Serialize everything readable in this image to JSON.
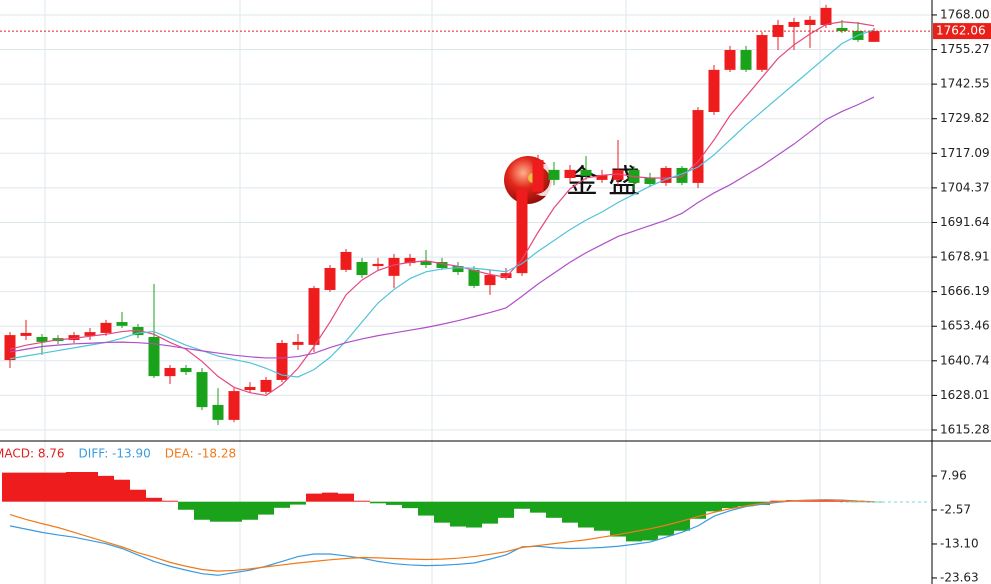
{
  "chart_data": [
    {
      "type": "candlestick",
      "watermark": "金 盛",
      "up_color": "#ee1c1c",
      "down_color": "#1ba21b",
      "open": [
        1641.0,
        1649.9,
        1649.5,
        1649.1,
        1648.4,
        1649.9,
        1651.0,
        1655.0,
        1653.2,
        1649.5,
        1635.1,
        1638.1,
        1636.6,
        1624.5,
        1619.0,
        1630.0,
        1629.3,
        1633.7,
        1646.6,
        1646.6,
        1666.8,
        1674.2,
        1677.1,
        1675.6,
        1672.0,
        1676.7,
        1677.5,
        1677.1,
        1675.6,
        1674.2,
        1668.6,
        1671.2,
        1673.0,
        1702.9,
        1711.0,
        1708.0,
        1711.0,
        1707.3,
        1707.3,
        1711.0,
        1708.0,
        1706.2,
        1711.7,
        1706.2,
        1732.3,
        1747.8,
        1755.1,
        1747.8,
        1759.9,
        1763.6,
        1764.3,
        1764.3,
        1763.2,
        1762.1,
        1758.1
      ],
      "high": [
        1651.3,
        1655.8,
        1650.6,
        1650.2,
        1651.3,
        1652.8,
        1655.8,
        1658.7,
        1654.3,
        1669.0,
        1639.2,
        1639.2,
        1638.1,
        1630.7,
        1630.7,
        1632.9,
        1634.8,
        1648.4,
        1650.6,
        1668.3,
        1676.0,
        1681.9,
        1678.6,
        1678.6,
        1680.1,
        1680.1,
        1681.5,
        1678.6,
        1677.1,
        1675.6,
        1674.2,
        1674.9,
        1705.1,
        1716.5,
        1713.9,
        1712.8,
        1716.1,
        1711.0,
        1722.0,
        1712.4,
        1709.9,
        1712.4,
        1712.4,
        1734.1,
        1749.6,
        1756.6,
        1756.6,
        1761.7,
        1766.2,
        1766.9,
        1767.6,
        1771.7,
        1766.2,
        1765.4,
        1763.2
      ],
      "low": [
        1638.1,
        1648.4,
        1642.9,
        1646.9,
        1647.3,
        1648.4,
        1649.9,
        1652.8,
        1649.1,
        1634.4,
        1632.2,
        1635.5,
        1622.6,
        1617.1,
        1618.2,
        1628.9,
        1628.5,
        1632.9,
        1644.7,
        1644.0,
        1666.1,
        1673.4,
        1671.2,
        1674.2,
        1667.5,
        1675.6,
        1674.9,
        1674.2,
        1672.3,
        1667.5,
        1665.0,
        1670.5,
        1672.0,
        1701.8,
        1705.4,
        1706.5,
        1707.3,
        1706.2,
        1705.4,
        1703.6,
        1704.7,
        1705.1,
        1705.4,
        1704.3,
        1731.2,
        1747.0,
        1747.0,
        1747.0,
        1755.1,
        1755.1,
        1755.9,
        1763.2,
        1761.4,
        1758.1,
        1758.1
      ],
      "close": [
        1650.2,
        1651.0,
        1647.7,
        1648.0,
        1650.2,
        1651.3,
        1654.7,
        1653.6,
        1650.2,
        1635.1,
        1638.1,
        1636.6,
        1623.7,
        1619.0,
        1629.6,
        1631.1,
        1633.7,
        1647.3,
        1647.7,
        1667.5,
        1674.9,
        1680.8,
        1672.3,
        1676.4,
        1678.6,
        1678.6,
        1676.0,
        1674.9,
        1673.4,
        1668.3,
        1672.3,
        1673.0,
        1703.6,
        1714.6,
        1707.3,
        1711.0,
        1708.8,
        1709.1,
        1711.0,
        1706.2,
        1705.8,
        1711.7,
        1706.2,
        1733.0,
        1747.8,
        1755.1,
        1747.8,
        1760.6,
        1764.3,
        1765.4,
        1766.2,
        1770.6,
        1762.1,
        1758.8,
        1762.06
      ],
      "lines": [
        {
          "color": "#e8467c",
          "values": [
            1645.0,
            1646.5,
            1647.5,
            1648.5,
            1649.0,
            1649.8,
            1650.5,
            1651.5,
            1652.0,
            1650.5,
            1647.5,
            1645.0,
            1640.5,
            1635.0,
            1631.0,
            1629.0,
            1628.0,
            1632.0,
            1638.0,
            1646.0,
            1655.0,
            1665.0,
            1670.5,
            1674.0,
            1676.0,
            1677.0,
            1677.5,
            1676.5,
            1675.5,
            1674.0,
            1672.5,
            1671.5,
            1678.0,
            1688.0,
            1697.0,
            1704.0,
            1708.0,
            1709.0,
            1709.5,
            1708.5,
            1708.0,
            1708.0,
            1708.5,
            1714.0,
            1722.0,
            1731.0,
            1738.0,
            1745.0,
            1752.0,
            1757.0,
            1761.0,
            1764.5,
            1765.5,
            1765.0,
            1764.0
          ]
        },
        {
          "color": "#4fc3d9",
          "values": [
            1641.5,
            1642.5,
            1643.5,
            1644.5,
            1645.5,
            1646.5,
            1647.5,
            1649.0,
            1651.0,
            1651.5,
            1649.0,
            1646.5,
            1644.5,
            1642.5,
            1641.2,
            1640.0,
            1638.0,
            1635.5,
            1634.8,
            1637.5,
            1642.0,
            1648.0,
            1655.0,
            1662.0,
            1667.0,
            1671.0,
            1673.5,
            1674.5,
            1675.0,
            1674.8,
            1674.2,
            1673.5,
            1676.5,
            1681.0,
            1685.0,
            1689.0,
            1692.5,
            1695.5,
            1699.0,
            1702.0,
            1705.0,
            1707.5,
            1709.5,
            1712.0,
            1716.5,
            1722.0,
            1727.5,
            1732.5,
            1737.5,
            1742.5,
            1747.5,
            1752.5,
            1757.5,
            1760.5,
            1762.5
          ]
        },
        {
          "color": "#b04fc9",
          "values": [
            1644.0,
            1645.0,
            1646.0,
            1646.5,
            1647.0,
            1647.2,
            1647.5,
            1647.6,
            1647.4,
            1647.0,
            1646.2,
            1645.3,
            1644.4,
            1643.6,
            1642.8,
            1642.2,
            1641.8,
            1641.8,
            1642.3,
            1643.5,
            1645.6,
            1647.4,
            1648.8,
            1650.0,
            1651.0,
            1652.0,
            1653.0,
            1654.2,
            1655.5,
            1657.0,
            1658.5,
            1660.2,
            1664.5,
            1669.0,
            1673.0,
            1677.0,
            1680.5,
            1683.5,
            1686.5,
            1688.5,
            1690.5,
            1692.5,
            1695.0,
            1699.0,
            1702.5,
            1705.5,
            1709.0,
            1712.5,
            1716.5,
            1720.5,
            1725.0,
            1729.5,
            1732.5,
            1735.0,
            1737.8
          ]
        }
      ],
      "current_price": 1762.06,
      "ylim": [
        1611.6,
        1773.5
      ],
      "yticks": [
        {
          "value": 1768,
          "label": "1768.00"
        },
        1755.27,
        1742.55,
        1729.82,
        1717.09,
        1704.37,
        1691.64,
        1678.91,
        1666.19,
        1653.46,
        1640.74,
        1628.01,
        1615.28
      ],
      "grid": true
    },
    {
      "type": "macd",
      "legend": [
        {
          "text": "MACD: 8.76",
          "color": "#e02020"
        },
        {
          "text": "DIFF: -13.90",
          "color": "#3a9be0"
        },
        {
          "text": "DEA: -18.28",
          "color": "#f07a1a"
        }
      ],
      "up_color": "#ee1c1c",
      "down_color": "#1ba21b",
      "histogram": [
        9.0,
        9.0,
        9.0,
        9.0,
        9.2,
        9.2,
        8.0,
        6.8,
        3.7,
        1.2,
        0.3,
        -2.5,
        -5.6,
        -6.2,
        -6.2,
        -5.6,
        -4.0,
        -1.9,
        -0.9,
        2.5,
        2.8,
        2.5,
        0.3,
        -0.5,
        -1.0,
        -2.0,
        -4.3,
        -6.5,
        -7.7,
        -8.0,
        -6.8,
        -5.0,
        -2.2,
        -3.4,
        -5.0,
        -6.5,
        -8.0,
        -9.0,
        -10.8,
        -12.3,
        -12.0,
        -10.5,
        -9.0,
        -5.3,
        -3.0,
        -2.0,
        -1.4,
        -1.0,
        0.3,
        0.5,
        0.5,
        0.5,
        0.3,
        -0.1,
        -0.2
      ],
      "lines": [
        {
          "color": "#3a9be0",
          "values": [
            -7.5,
            -8.5,
            -9.5,
            -10.3,
            -11.0,
            -12.0,
            -13.0,
            -14.5,
            -16.5,
            -18.5,
            -20.0,
            -21.2,
            -22.3,
            -22.8,
            -22.0,
            -21.2,
            -20.0,
            -18.5,
            -17.0,
            -16.2,
            -16.2,
            -16.8,
            -17.5,
            -18.5,
            -19.2,
            -19.6,
            -19.8,
            -19.7,
            -19.4,
            -19.0,
            -17.8,
            -16.5,
            -14.0,
            -13.8,
            -14.3,
            -14.5,
            -14.4,
            -14.2,
            -13.8,
            -13.2,
            -12.5,
            -11.0,
            -9.5,
            -7.5,
            -4.5,
            -2.8,
            -1.5,
            -0.8,
            -0.2,
            0.3,
            0.5,
            0.6,
            0.5,
            0.2,
            -0.1
          ]
        },
        {
          "color": "#f07a1a",
          "values": [
            -4.0,
            -5.5,
            -6.8,
            -8.0,
            -9.5,
            -11.0,
            -12.5,
            -14.0,
            -15.8,
            -17.2,
            -18.8,
            -20.0,
            -21.0,
            -21.5,
            -21.3,
            -20.8,
            -20.2,
            -19.6,
            -19.0,
            -18.5,
            -18.0,
            -17.6,
            -17.3,
            -17.4,
            -17.6,
            -17.8,
            -17.9,
            -17.8,
            -17.5,
            -17.0,
            -16.3,
            -15.5,
            -14.2,
            -13.6,
            -13.0,
            -12.4,
            -11.8,
            -11.0,
            -10.2,
            -9.3,
            -8.4,
            -7.3,
            -6.0,
            -4.6,
            -3.3,
            -2.2,
            -1.3,
            -0.5,
            0.0,
            0.3,
            0.4,
            0.5,
            0.4,
            0.2,
            0.0
          ]
        }
      ],
      "ylim": [
        -25.5,
        18.8
      ],
      "yticks": [
        7.96,
        -2.57,
        {
          "value": -13.1,
          "label": "-13.10"
        },
        -23.63
      ],
      "grid": false
    }
  ]
}
